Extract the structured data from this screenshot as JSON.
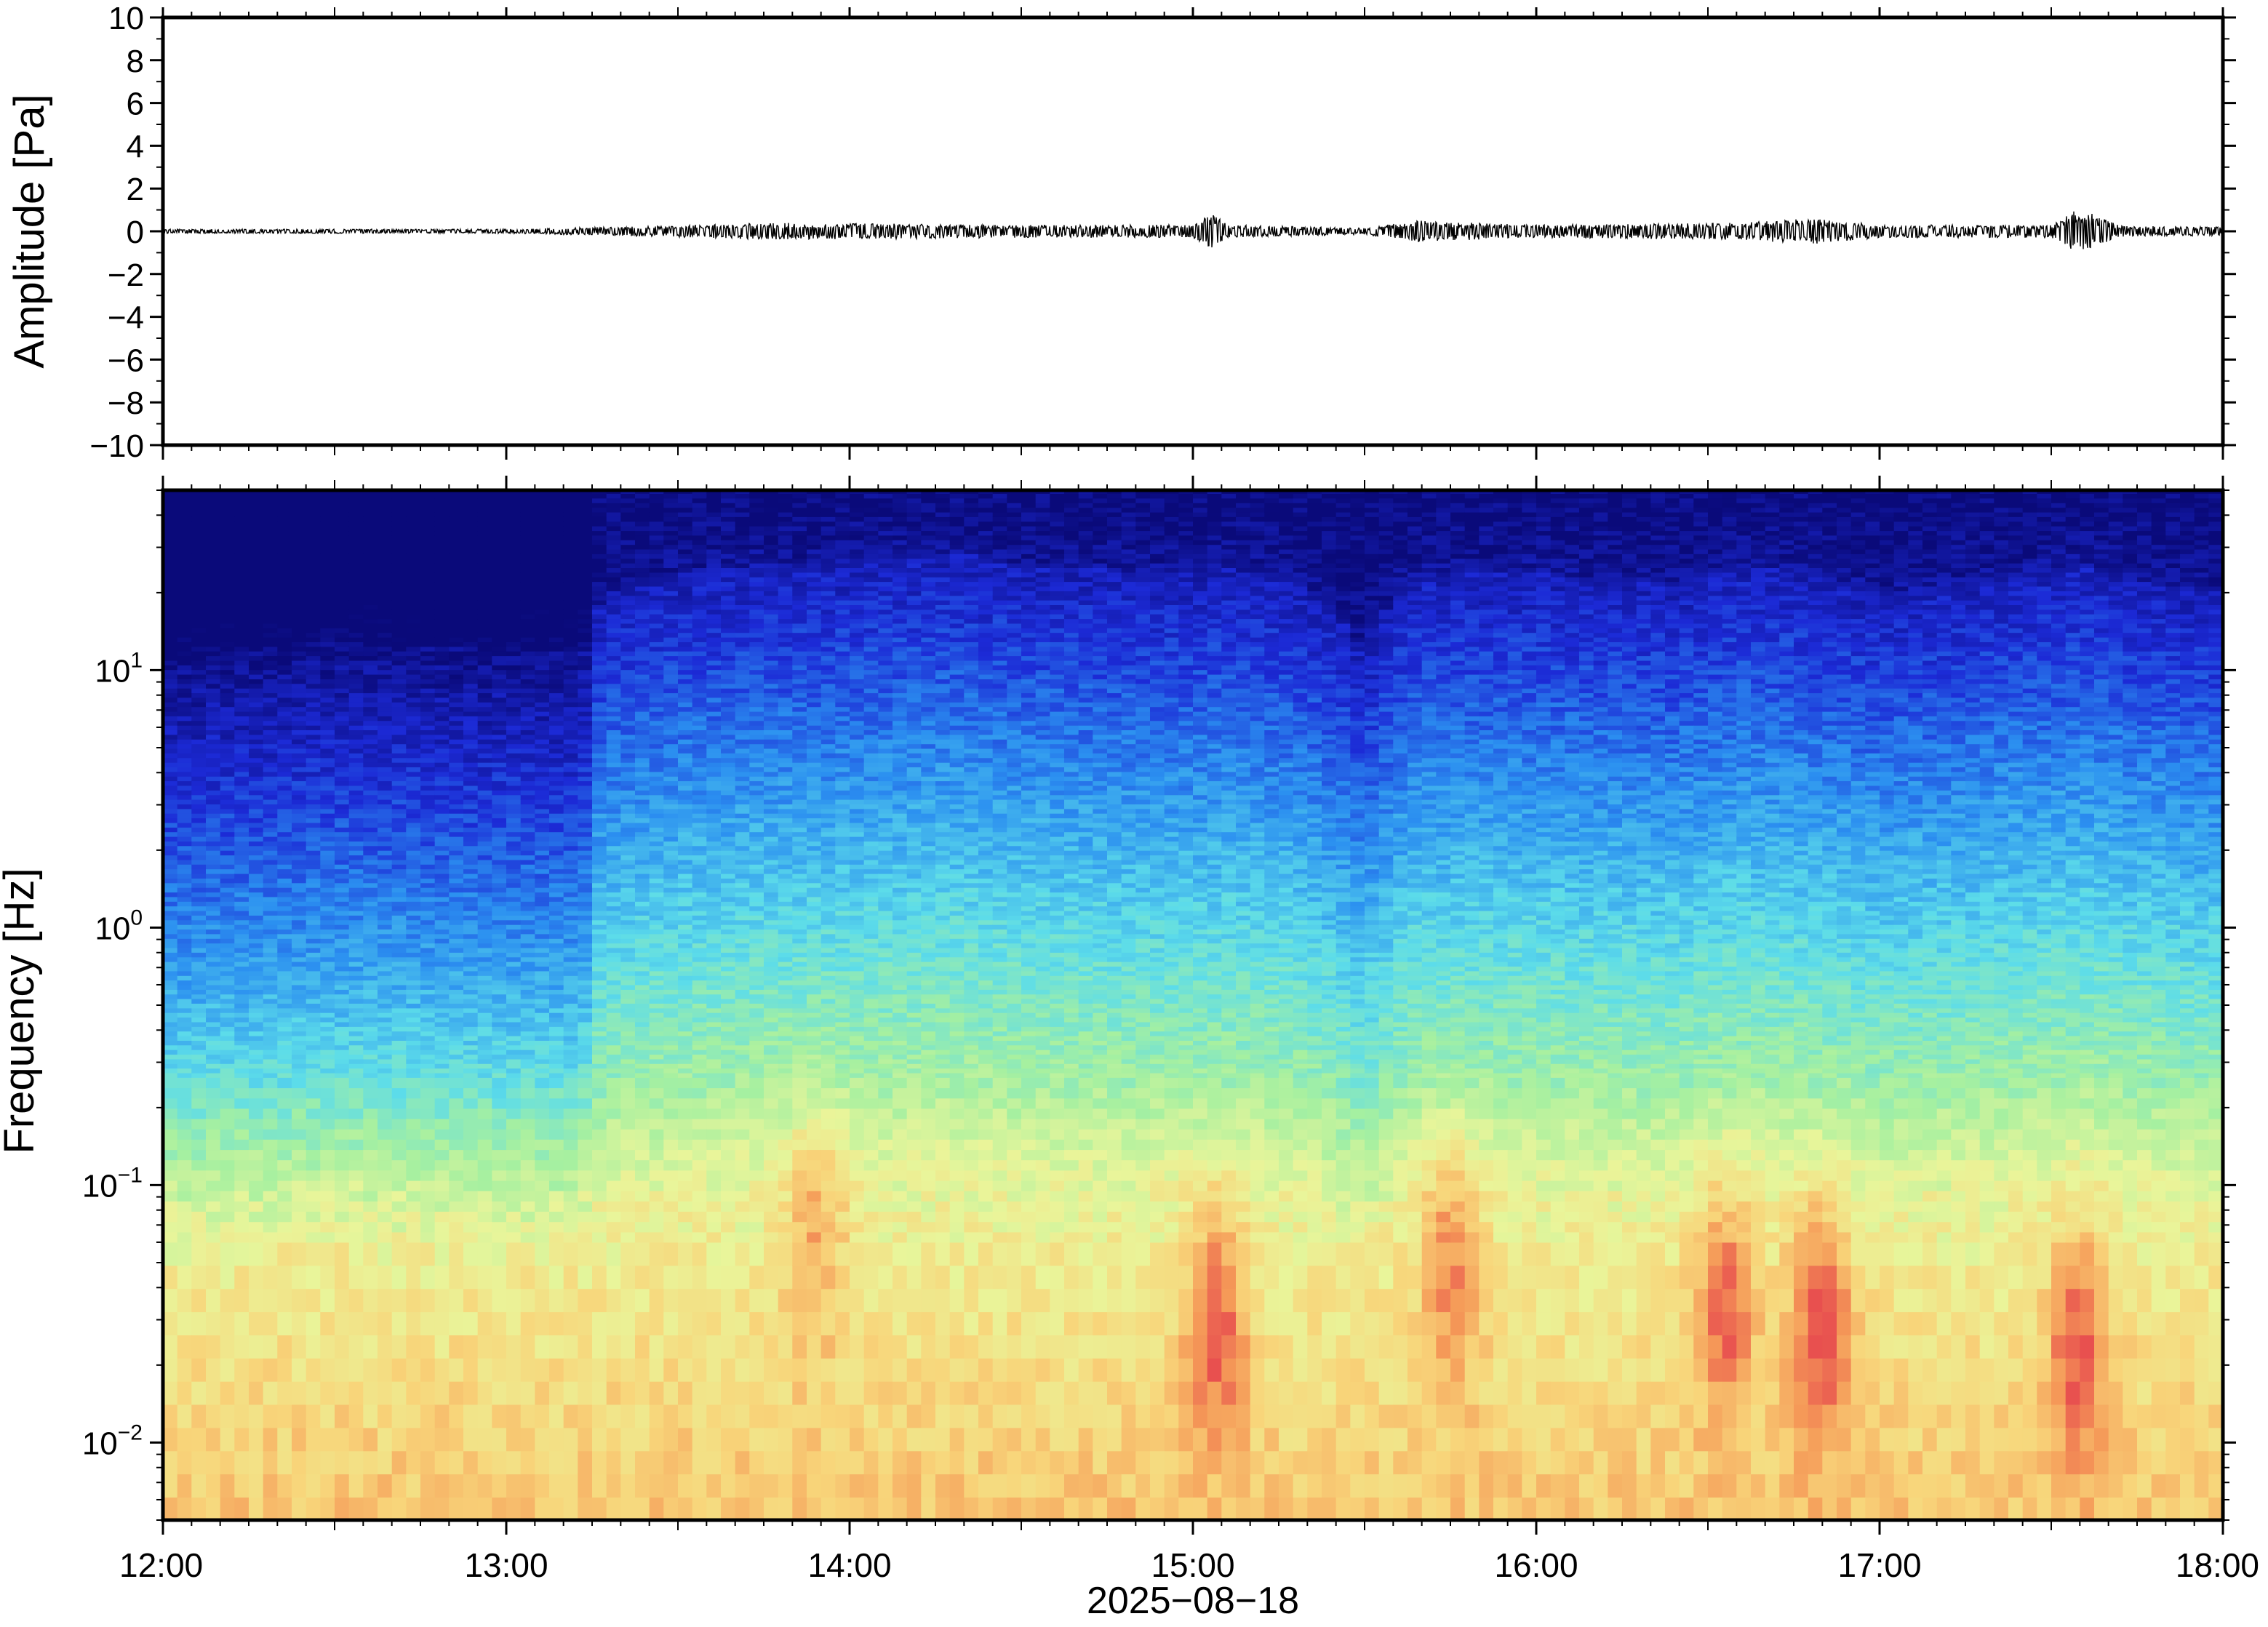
{
  "chart_data": [
    {
      "type": "line",
      "panel": "waveform",
      "ylabel": "Amplitude [Pa]",
      "ylim": [
        -10,
        10
      ],
      "yticks": [
        10,
        8,
        6,
        4,
        2,
        0,
        -2,
        -4,
        -6,
        -8,
        -10
      ],
      "ytick_labels": [
        "10",
        "8",
        "6",
        "4",
        "2",
        "0",
        "−2",
        "−4",
        "−6",
        "−8",
        "−10"
      ],
      "xlim": [
        "12:00",
        "18:00"
      ],
      "baseline": 0,
      "envelope": {
        "hours": [
          12.0,
          12.5,
          13.0,
          13.3,
          13.8,
          14.5,
          15.0,
          15.06,
          15.1,
          15.5,
          15.65,
          16.0,
          16.6,
          16.8,
          17.0,
          17.5,
          17.58,
          17.7,
          18.0
        ],
        "amplitude_pa": [
          0.1,
          0.1,
          0.1,
          0.2,
          0.4,
          0.3,
          0.3,
          0.9,
          0.3,
          0.15,
          0.5,
          0.3,
          0.4,
          0.6,
          0.3,
          0.3,
          1.1,
          0.25,
          0.2
        ]
      },
      "line_color": "#000000"
    },
    {
      "type": "heatmap",
      "panel": "spectrogram",
      "ylabel": "Frequency [Hz]",
      "yscale": "log",
      "ylim": [
        0.005,
        50
      ],
      "yticks": [
        0.01,
        0.1,
        1,
        10
      ],
      "ytick_labels": [
        {
          "base": "10",
          "exp": "−2"
        },
        {
          "base": "10",
          "exp": "−1"
        },
        {
          "base": "10",
          "exp": "0"
        },
        {
          "base": "10",
          "exp": "1"
        }
      ],
      "xlabel": "2025−08−18",
      "xlim": [
        "12:00",
        "18:00"
      ],
      "xtick_labels": [
        "12:00",
        "13:00",
        "14:00",
        "15:00",
        "16:00",
        "17:00",
        "18:00"
      ],
      "colormap": "jet",
      "colormap_stops": [
        "#0a0a7a",
        "#1c2ad6",
        "#2b8ff0",
        "#5cdcea",
        "#a6f0a0",
        "#e9f59a",
        "#f8d57a",
        "#f59a58",
        "#e8504f"
      ],
      "time_bins_hours": [
        12.0,
        12.5,
        13.0,
        13.2,
        13.3,
        13.6,
        14.0,
        14.3,
        14.5,
        14.9,
        15.0,
        15.1,
        15.3,
        15.5,
        15.65,
        16.0,
        16.4,
        16.6,
        16.8,
        17.0,
        17.4,
        17.6,
        17.8,
        18.0
      ],
      "cutoff_freq_hz": [
        11,
        13,
        12,
        12,
        20,
        25,
        27,
        29,
        26,
        24,
        24,
        25,
        22,
        12,
        24,
        24,
        22,
        26,
        24,
        20,
        24,
        26,
        22,
        20
      ],
      "low_freq_hotspots": [
        {
          "hour": 15.07,
          "freq_hz": 0.03,
          "intensity": 0.9
        },
        {
          "hour": 16.55,
          "freq_hz": 0.035,
          "intensity": 0.85
        },
        {
          "hour": 16.83,
          "freq_hz": 0.03,
          "intensity": 1.0
        },
        {
          "hour": 17.58,
          "freq_hz": 0.025,
          "intensity": 0.9
        },
        {
          "hour": 15.75,
          "freq_hz": 0.05,
          "intensity": 0.75
        },
        {
          "hour": 13.9,
          "freq_hz": 0.07,
          "intensity": 0.6
        }
      ]
    }
  ]
}
